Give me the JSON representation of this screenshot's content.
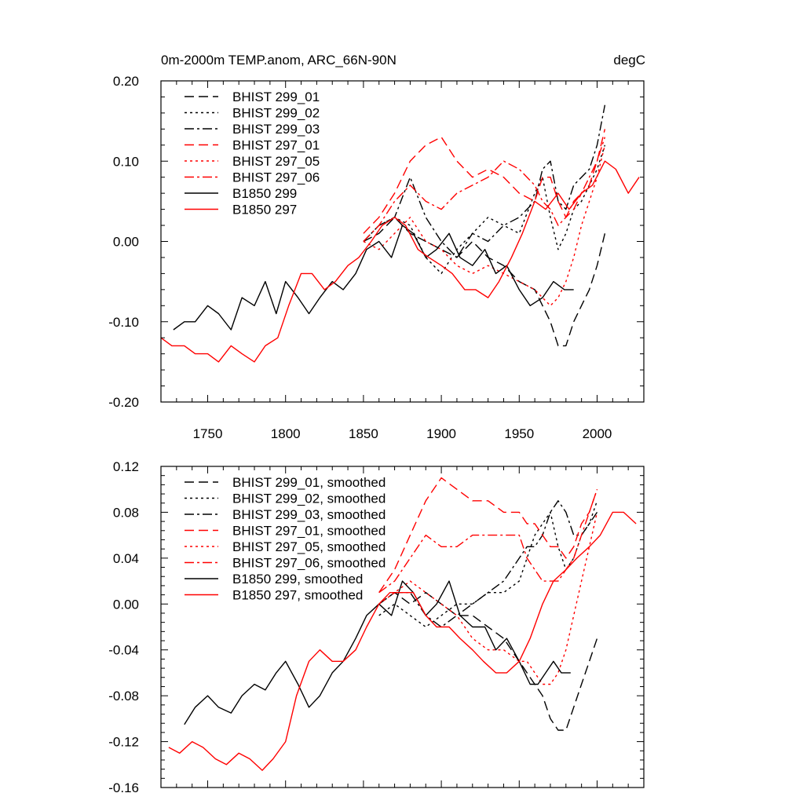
{
  "chart_data": [
    {
      "type": "line",
      "title": "0m-2000m TEMP.anom, ARC_66N-90N",
      "units": "degC",
      "xlim": [
        1720,
        2030
      ],
      "ylim": [
        -0.2,
        0.2
      ],
      "x_ticks": [
        1750,
        1800,
        1850,
        1900,
        1950,
        2000
      ],
      "x_tick_labels": [
        "1750",
        "1800",
        "1850",
        "1900",
        "1950",
        "2000"
      ],
      "y_ticks": [
        -0.2,
        -0.1,
        0.0,
        0.1,
        0.2
      ],
      "y_tick_labels": [
        "-0.20",
        "-0.10",
        "0.00",
        "0.10",
        "0.20"
      ],
      "legend_position": "top-left",
      "series": [
        {
          "name": "BHIST 299_01",
          "color": "#000000",
          "dash": "long-dash",
          "x": [
            1850,
            1860,
            1870,
            1880,
            1890,
            1900,
            1910,
            1920,
            1930,
            1940,
            1950,
            1960,
            1965,
            1970,
            1975,
            1980,
            1985,
            1990,
            1995,
            2000,
            2005
          ],
          "y": [
            0.0,
            0.01,
            0.03,
            0.01,
            0.0,
            -0.01,
            -0.02,
            0.0,
            -0.02,
            -0.03,
            -0.05,
            -0.06,
            -0.08,
            -0.1,
            -0.13,
            -0.13,
            -0.1,
            -0.08,
            -0.06,
            -0.03,
            0.01
          ]
        },
        {
          "name": "BHIST 299_02",
          "color": "#000000",
          "dash": "dotted",
          "x": [
            1850,
            1860,
            1870,
            1880,
            1890,
            1900,
            1910,
            1920,
            1930,
            1940,
            1950,
            1960,
            1965,
            1970,
            1975,
            1980,
            1985,
            1990,
            1995,
            2000,
            2005
          ],
          "y": [
            0.0,
            0.02,
            0.03,
            0.02,
            -0.02,
            -0.04,
            -0.01,
            0.01,
            0.03,
            0.02,
            0.01,
            0.06,
            0.08,
            0.03,
            -0.01,
            0.01,
            0.04,
            0.05,
            0.07,
            0.09,
            0.12
          ]
        },
        {
          "name": "BHIST 299_03",
          "color": "#000000",
          "dash": "dash-dot",
          "x": [
            1850,
            1860,
            1870,
            1880,
            1890,
            1900,
            1910,
            1920,
            1930,
            1940,
            1950,
            1960,
            1965,
            1970,
            1975,
            1980,
            1985,
            1990,
            1995,
            2000,
            2005
          ],
          "y": [
            0.0,
            0.02,
            0.03,
            0.08,
            0.03,
            0.0,
            -0.02,
            0.01,
            0.0,
            0.02,
            0.03,
            0.05,
            0.09,
            0.1,
            0.05,
            0.04,
            0.07,
            0.08,
            0.09,
            0.12,
            0.17
          ]
        },
        {
          "name": "BHIST 297_01",
          "color": "#ff0000",
          "dash": "long-dash",
          "x": [
            1850,
            1860,
            1870,
            1880,
            1890,
            1900,
            1910,
            1920,
            1930,
            1940,
            1950,
            1960,
            1965,
            1970,
            1975,
            1980,
            1985,
            1990,
            1995,
            2000,
            2005
          ],
          "y": [
            0.01,
            0.03,
            0.06,
            0.1,
            0.12,
            0.13,
            0.1,
            0.08,
            0.09,
            0.08,
            0.06,
            0.05,
            0.08,
            0.08,
            0.05,
            0.03,
            0.04,
            0.06,
            0.07,
            0.1,
            0.14
          ]
        },
        {
          "name": "BHIST 297_05",
          "color": "#ff0000",
          "dash": "dotted",
          "x": [
            1850,
            1860,
            1870,
            1880,
            1890,
            1900,
            1910,
            1920,
            1930,
            1940,
            1950,
            1960,
            1965,
            1970,
            1975,
            1980,
            1985,
            1990,
            1995,
            2000,
            2005
          ],
          "y": [
            0.0,
            -0.01,
            0.01,
            0.03,
            0.0,
            -0.01,
            -0.03,
            -0.04,
            -0.03,
            -0.04,
            -0.05,
            -0.06,
            -0.07,
            -0.08,
            -0.07,
            -0.05,
            -0.02,
            0.02,
            0.05,
            0.08,
            0.12
          ]
        },
        {
          "name": "BHIST 297_06",
          "color": "#ff0000",
          "dash": "dash-dot",
          "x": [
            1850,
            1860,
            1870,
            1880,
            1890,
            1900,
            1910,
            1920,
            1930,
            1940,
            1950,
            1960,
            1965,
            1970,
            1975,
            1980,
            1985,
            1990,
            1995,
            2000,
            2005
          ],
          "y": [
            0.0,
            0.02,
            0.05,
            0.07,
            0.05,
            0.04,
            0.06,
            0.07,
            0.08,
            0.1,
            0.09,
            0.07,
            0.05,
            0.04,
            0.02,
            0.03,
            0.05,
            0.06,
            0.08,
            0.1,
            0.13
          ]
        },
        {
          "name": "B1850 299",
          "color": "#000000",
          "dash": "solid",
          "x": [
            1728,
            1735,
            1742,
            1750,
            1757,
            1765,
            1772,
            1780,
            1787,
            1794,
            1800,
            1808,
            1815,
            1822,
            1830,
            1837,
            1845,
            1852,
            1860,
            1868,
            1875,
            1882,
            1890,
            1897,
            1905,
            1912,
            1920,
            1928,
            1935,
            1942,
            1950,
            1957,
            1965,
            1972,
            1979,
            1985
          ],
          "y": [
            -0.11,
            -0.1,
            -0.1,
            -0.08,
            -0.09,
            -0.11,
            -0.07,
            -0.08,
            -0.05,
            -0.09,
            -0.05,
            -0.07,
            -0.09,
            -0.07,
            -0.05,
            -0.06,
            -0.04,
            -0.01,
            0.0,
            -0.02,
            0.02,
            0.01,
            -0.02,
            -0.01,
            0.01,
            -0.02,
            -0.03,
            -0.01,
            -0.04,
            -0.03,
            -0.06,
            -0.08,
            -0.07,
            -0.05,
            -0.06,
            -0.06
          ]
        },
        {
          "name": "B1850 297",
          "color": "#ff0000",
          "dash": "solid",
          "x": [
            1720,
            1727,
            1735,
            1742,
            1750,
            1757,
            1765,
            1772,
            1780,
            1787,
            1795,
            1802,
            1810,
            1817,
            1825,
            1832,
            1840,
            1847,
            1855,
            1862,
            1870,
            1877,
            1885,
            1892,
            1900,
            1907,
            1915,
            1922,
            1930,
            1937,
            1945,
            1952,
            1960,
            1967,
            1975,
            1982,
            1990,
            1997,
            2005,
            2012,
            2020,
            2027
          ],
          "y": [
            -0.12,
            -0.13,
            -0.13,
            -0.14,
            -0.14,
            -0.15,
            -0.13,
            -0.14,
            -0.15,
            -0.13,
            -0.12,
            -0.08,
            -0.04,
            -0.04,
            -0.06,
            -0.05,
            -0.03,
            -0.02,
            0.0,
            0.02,
            0.03,
            0.02,
            -0.01,
            -0.02,
            -0.03,
            -0.04,
            -0.06,
            -0.06,
            -0.07,
            -0.05,
            -0.02,
            0.01,
            0.05,
            0.04,
            0.06,
            0.04,
            0.06,
            0.07,
            0.1,
            0.09,
            0.06,
            0.08
          ]
        }
      ]
    },
    {
      "type": "line",
      "xlim": [
        1720,
        2030
      ],
      "ylim": [
        -0.16,
        0.12
      ],
      "x_ticks": [
        1750,
        1800,
        1850,
        1900,
        1950,
        2000
      ],
      "y_ticks": [
        -0.16,
        -0.12,
        -0.08,
        -0.04,
        0.0,
        0.04,
        0.08,
        0.12
      ],
      "y_tick_labels": [
        "-0.16",
        "-0.12",
        "-0.08",
        "-0.04",
        "0.00",
        "0.04",
        "0.08",
        "0.12"
      ],
      "legend_position": "top-left",
      "series": [
        {
          "name": "BHIST 299_01, smoothed",
          "color": "#000000",
          "dash": "long-dash",
          "x": [
            1860,
            1870,
            1880,
            1890,
            1900,
            1910,
            1920,
            1930,
            1940,
            1950,
            1955,
            1960,
            1965,
            1970,
            1975,
            1980,
            1985,
            1990,
            1995,
            2000
          ],
          "y": [
            0.0,
            0.01,
            0.0,
            0.01,
            0.0,
            -0.01,
            -0.01,
            -0.02,
            -0.03,
            -0.05,
            -0.06,
            -0.07,
            -0.08,
            -0.1,
            -0.11,
            -0.11,
            -0.09,
            -0.07,
            -0.05,
            -0.03
          ]
        },
        {
          "name": "BHIST 299_02, smoothed",
          "color": "#000000",
          "dash": "dotted",
          "x": [
            1860,
            1870,
            1880,
            1890,
            1900,
            1910,
            1920,
            1930,
            1940,
            1950,
            1955,
            1960,
            1965,
            1970,
            1975,
            1980,
            1985,
            1990,
            1995,
            2000
          ],
          "y": [
            -0.01,
            0.0,
            -0.01,
            -0.02,
            -0.01,
            0.0,
            0.0,
            0.01,
            0.01,
            0.02,
            0.04,
            0.06,
            0.07,
            0.08,
            0.05,
            0.03,
            0.04,
            0.06,
            0.07,
            0.09
          ]
        },
        {
          "name": "BHIST 299_03, smoothed",
          "color": "#000000",
          "dash": "dash-dot",
          "x": [
            1860,
            1870,
            1880,
            1890,
            1900,
            1910,
            1920,
            1930,
            1940,
            1950,
            1955,
            1960,
            1965,
            1970,
            1975,
            1980,
            1985,
            1990,
            1995,
            2000
          ],
          "y": [
            0.0,
            0.01,
            0.01,
            -0.01,
            -0.02,
            -0.01,
            0.0,
            0.01,
            0.02,
            0.04,
            0.05,
            0.05,
            0.06,
            0.08,
            0.09,
            0.08,
            0.06,
            0.06,
            0.07,
            0.08
          ]
        },
        {
          "name": "BHIST 297_01, smoothed",
          "color": "#ff0000",
          "dash": "long-dash",
          "x": [
            1860,
            1870,
            1880,
            1890,
            1900,
            1910,
            1920,
            1930,
            1940,
            1950,
            1955,
            1960,
            1965,
            1970,
            1975,
            1980,
            1985,
            1990,
            1995,
            2000
          ],
          "y": [
            0.01,
            0.03,
            0.06,
            0.09,
            0.11,
            0.1,
            0.09,
            0.09,
            0.08,
            0.08,
            0.07,
            0.07,
            0.06,
            0.05,
            0.05,
            0.04,
            0.05,
            0.07,
            0.08,
            0.1
          ]
        },
        {
          "name": "BHIST 297_05, smoothed",
          "color": "#ff0000",
          "dash": "dotted",
          "x": [
            1860,
            1870,
            1880,
            1890,
            1900,
            1910,
            1920,
            1930,
            1940,
            1950,
            1955,
            1960,
            1965,
            1970,
            1975,
            1980,
            1985,
            1990,
            1995,
            2000
          ],
          "y": [
            0.0,
            0.01,
            0.02,
            0.01,
            0.0,
            -0.01,
            -0.03,
            -0.04,
            -0.04,
            -0.05,
            -0.05,
            -0.06,
            -0.07,
            -0.07,
            -0.06,
            -0.04,
            -0.01,
            0.02,
            0.05,
            0.08
          ]
        },
        {
          "name": "BHIST 297_06, smoothed",
          "color": "#ff0000",
          "dash": "dash-dot",
          "x": [
            1860,
            1870,
            1880,
            1890,
            1900,
            1910,
            1920,
            1930,
            1940,
            1950,
            1955,
            1960,
            1965,
            1970,
            1975,
            1980,
            1985,
            1990,
            1995,
            2000
          ],
          "y": [
            0.01,
            0.02,
            0.04,
            0.06,
            0.05,
            0.05,
            0.06,
            0.06,
            0.06,
            0.06,
            0.04,
            0.03,
            0.02,
            0.02,
            0.02,
            0.03,
            0.04,
            0.06,
            0.08,
            0.1
          ]
        },
        {
          "name": "B1850 299, smoothed",
          "color": "#000000",
          "dash": "solid",
          "x": [
            1735,
            1742,
            1750,
            1757,
            1765,
            1772,
            1780,
            1787,
            1794,
            1800,
            1808,
            1815,
            1822,
            1830,
            1837,
            1845,
            1852,
            1860,
            1868,
            1875,
            1882,
            1890,
            1897,
            1905,
            1912,
            1920,
            1928,
            1935,
            1942,
            1950,
            1957,
            1962,
            1967,
            1972,
            1977,
            1983
          ],
          "y": [
            -0.105,
            -0.09,
            -0.08,
            -0.09,
            -0.095,
            -0.08,
            -0.07,
            -0.075,
            -0.06,
            -0.05,
            -0.07,
            -0.09,
            -0.08,
            -0.06,
            -0.05,
            -0.03,
            -0.01,
            0.0,
            -0.01,
            0.02,
            0.01,
            -0.01,
            0.0,
            0.02,
            -0.01,
            -0.02,
            -0.02,
            -0.04,
            -0.03,
            -0.05,
            -0.07,
            -0.07,
            -0.06,
            -0.05,
            -0.06,
            -0.06
          ]
        },
        {
          "name": "B1850 297, smoothed",
          "color": "#ff0000",
          "dash": "solid",
          "x": [
            1725,
            1732,
            1740,
            1747,
            1755,
            1762,
            1770,
            1777,
            1785,
            1792,
            1800,
            1807,
            1815,
            1822,
            1830,
            1837,
            1845,
            1852,
            1860,
            1867,
            1875,
            1882,
            1890,
            1897,
            1905,
            1912,
            1920,
            1927,
            1935,
            1942,
            1950,
            1957,
            1965,
            1972,
            1980,
            1987,
            1995,
            2002,
            2010,
            2017,
            2025
          ],
          "y": [
            -0.125,
            -0.13,
            -0.12,
            -0.125,
            -0.135,
            -0.14,
            -0.13,
            -0.135,
            -0.145,
            -0.135,
            -0.12,
            -0.08,
            -0.05,
            -0.04,
            -0.05,
            -0.05,
            -0.04,
            -0.02,
            0.0,
            0.01,
            0.01,
            0.01,
            -0.01,
            -0.02,
            -0.02,
            -0.03,
            -0.04,
            -0.05,
            -0.06,
            -0.06,
            -0.05,
            -0.03,
            0.0,
            0.02,
            0.03,
            0.04,
            0.05,
            0.06,
            0.08,
            0.08,
            0.07
          ]
        }
      ]
    }
  ]
}
